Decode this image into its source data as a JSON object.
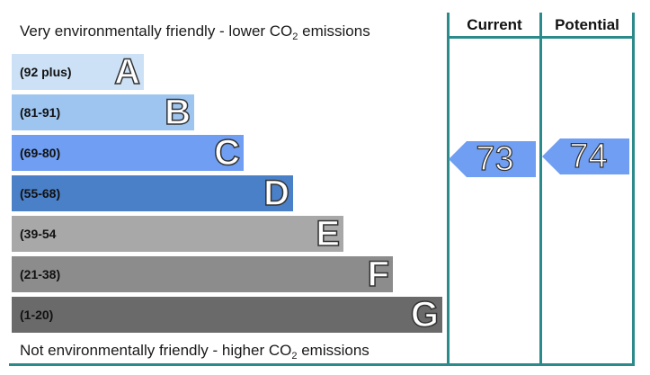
{
  "captions": {
    "top_prefix": "Very environmentally friendly - lower CO",
    "top_sub": "2",
    "top_suffix": " emissions",
    "bottom_prefix": "Not environmentally friendly - higher CO",
    "bottom_sub": "2",
    "bottom_suffix": " emissions"
  },
  "bands": [
    {
      "letter": "A",
      "range": "(92 plus)",
      "color": "#cce1f6"
    },
    {
      "letter": "B",
      "range": "(81-91)",
      "color": "#9dc5f0"
    },
    {
      "letter": "C",
      "range": "(69-80)",
      "color": "#6f9ef2"
    },
    {
      "letter": "D",
      "range": "(55-68)",
      "color": "#4a80c8"
    },
    {
      "letter": "E",
      "range": "(39-54",
      "color": "#a8a8a8"
    },
    {
      "letter": "F",
      "range": "(21-38)",
      "color": "#8c8c8c"
    },
    {
      "letter": "G",
      "range": "(1-20)",
      "color": "#6a6a6a"
    }
  ],
  "columns": {
    "current": "Current",
    "potential": "Potential"
  },
  "ratings": {
    "current": {
      "value": "73",
      "band": "C",
      "color": "#6f9ef2"
    },
    "potential": {
      "value": "74",
      "band": "C",
      "color": "#6f9ef2"
    }
  },
  "grid_color": "#2b8a8a"
}
